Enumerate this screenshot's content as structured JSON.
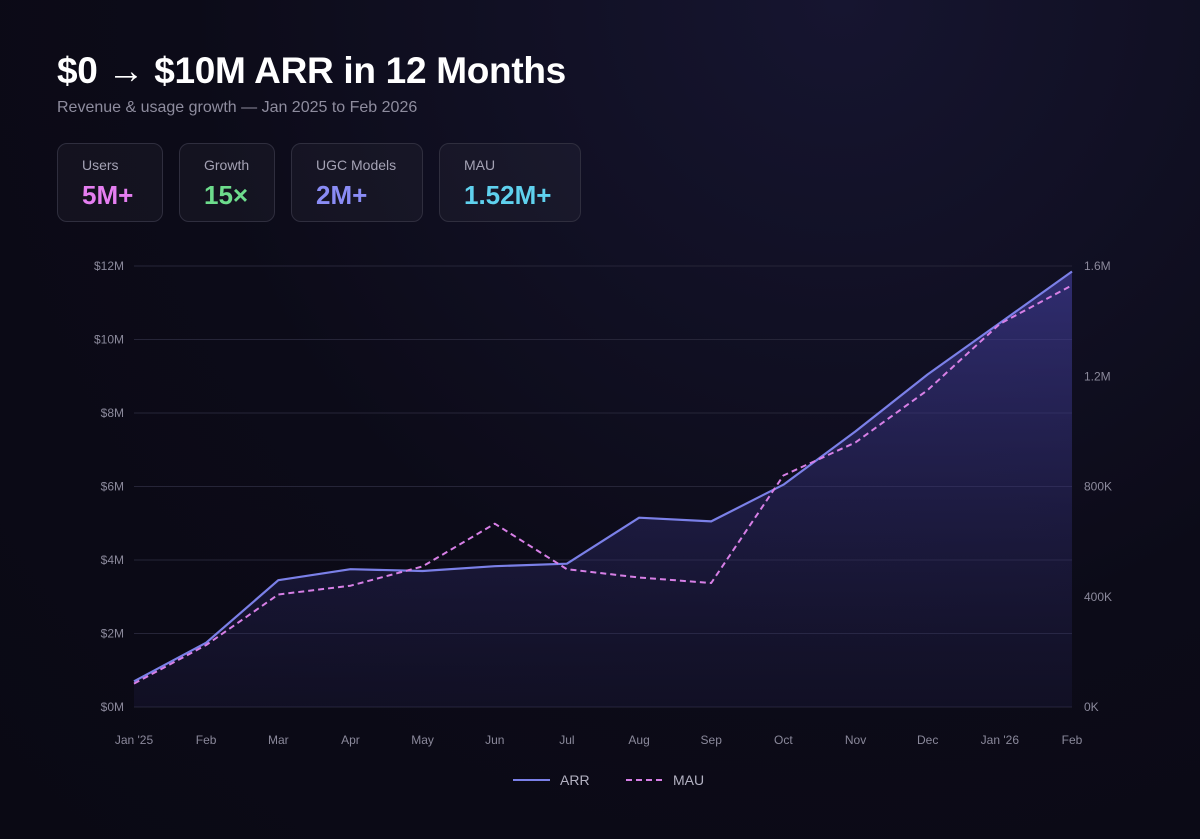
{
  "header": {
    "title": "$0 → $10M ARR in 12 Months",
    "subtitle": "Revenue & usage growth — Jan 2025 to Feb 2026"
  },
  "stats": [
    {
      "label": "Users",
      "value": "5M+",
      "color": "#e57ef0"
    },
    {
      "label": "Growth",
      "value": "15×",
      "color": "#6ddc8c"
    },
    {
      "label": "UGC Models",
      "value": "2M+",
      "color": "#8a8cf5"
    },
    {
      "label": "MAU",
      "value": "1.52M+",
      "color": "#5fd1ee"
    }
  ],
  "chart_data": {
    "type": "line",
    "categories": [
      "Jan '25",
      "Feb",
      "Mar",
      "Apr",
      "May",
      "Jun",
      "Jul",
      "Aug",
      "Sep",
      "Oct",
      "Nov",
      "Dec",
      "Jan '26",
      "Feb"
    ],
    "series": [
      {
        "name": "ARR",
        "axis": "left",
        "style": "solid",
        "color": "#7b80e8",
        "values": [
          0.7,
          1.75,
          3.45,
          3.75,
          3.7,
          3.83,
          3.9,
          5.15,
          5.05,
          6.05,
          7.5,
          9.05,
          10.45,
          11.85
        ]
      },
      {
        "name": "MAU",
        "axis": "right",
        "style": "dashed",
        "color": "#d77fe6",
        "values": [
          85000,
          225000,
          408000,
          440000,
          510000,
          665000,
          500000,
          470000,
          450000,
          840000,
          960000,
          1150000,
          1390000,
          1530000
        ]
      }
    ],
    "left_axis": {
      "min": 0,
      "max": 12,
      "ticks": [
        "$0M",
        "$2M",
        "$4M",
        "$6M",
        "$8M",
        "$10M",
        "$12M"
      ]
    },
    "right_axis": {
      "min": 0,
      "max": 1600000,
      "ticks": [
        "0K",
        "400K",
        "800K",
        "1.2M",
        "1.6M"
      ],
      "tick_values": [
        0,
        400000,
        800000,
        1200000,
        1600000
      ]
    },
    "grid": true,
    "legend_position": "bottom-center",
    "area_fill_series": "ARR"
  }
}
